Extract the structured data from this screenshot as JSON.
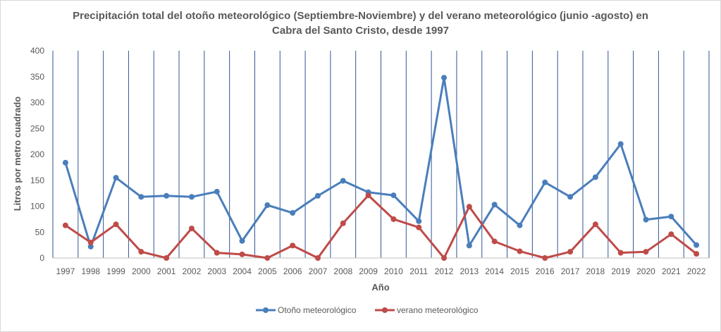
{
  "chart_data": {
    "type": "line",
    "title_line1": "Precipitación total del otoño meteorológico (Septiembre-Noviembre) y del verano meteorológico (junio -agosto) en",
    "title_line2": "Cabra del Santo Cristo, desde 1997",
    "xlabel": "Año",
    "ylabel": "Litros por metro cuadrado",
    "ylim": [
      0,
      400
    ],
    "yticks": [
      "0",
      "50",
      "100",
      "150",
      "200",
      "250",
      "300",
      "350",
      "400"
    ],
    "categories": [
      "1997",
      "1998",
      "1999",
      "2000",
      "2001",
      "2002",
      "2003",
      "2004",
      "2005",
      "2006",
      "2007",
      "2008",
      "2009",
      "2010",
      "2011",
      "2012",
      "2013",
      "2014",
      "2015",
      "2016",
      "2017",
      "2018",
      "2019",
      "2020",
      "2021",
      "2022"
    ],
    "series": [
      {
        "name": "Otoño meteorológico",
        "color": "#4a7ebb",
        "values": [
          184,
          22,
          155,
          118,
          120,
          118,
          128,
          33,
          102,
          87,
          120,
          149,
          127,
          121,
          71,
          348,
          24,
          103,
          63,
          146,
          118,
          156,
          220,
          74,
          80,
          25
        ]
      },
      {
        "name": "verano meteorológico",
        "color": "#be4b48",
        "values": [
          63,
          30,
          65,
          12,
          0,
          57,
          10,
          7,
          0,
          24,
          0,
          67,
          121,
          75,
          59,
          0,
          99,
          32,
          13,
          0,
          12,
          65,
          10,
          12,
          46,
          8
        ]
      }
    ],
    "vertical_grid": true,
    "grid_color": "#2f5597",
    "legend_position": "bottom"
  }
}
